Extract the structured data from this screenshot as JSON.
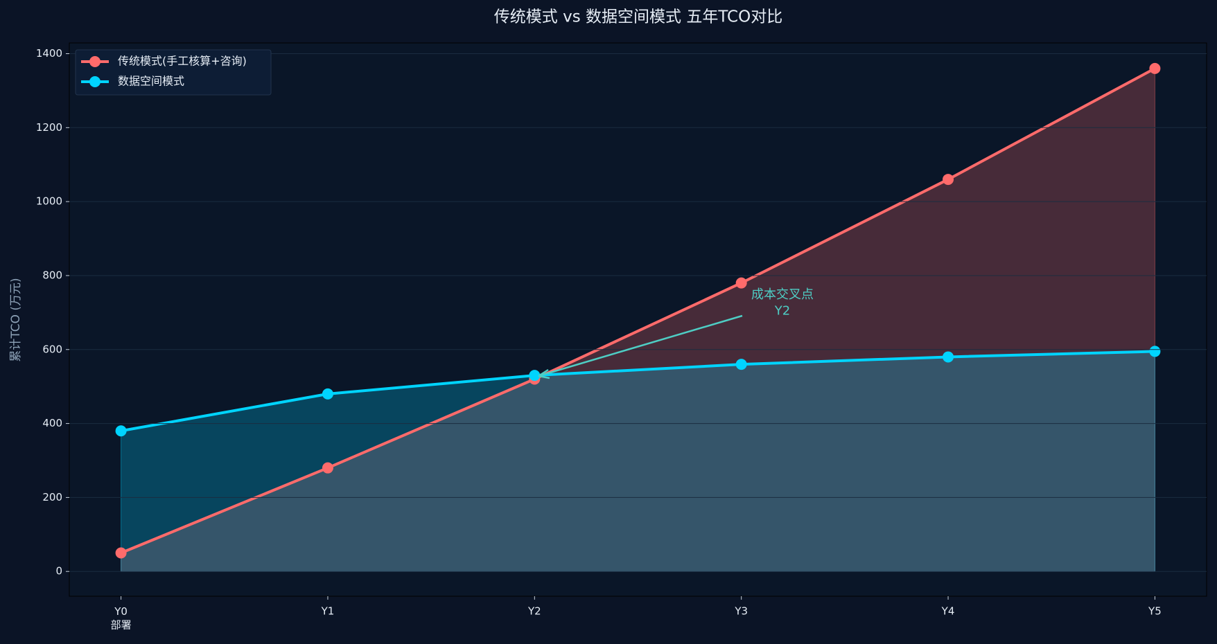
{
  "chart_data": {
    "type": "line",
    "title": "传统模式 vs 数据空间模式 五年TCO对比",
    "y_label": "累计TCO (万元)",
    "categories": [
      "Y0\n部署",
      "Y1",
      "Y2",
      "Y3",
      "Y4",
      "Y5"
    ],
    "series": [
      {
        "name": "传统模式(手工核算+咨询)",
        "color": "#ff6b6b",
        "values": [
          50,
          280,
          520,
          780,
          1060,
          1360
        ]
      },
      {
        "name": "数据空间模式",
        "color": "#00d4ff",
        "values": [
          380,
          480,
          530,
          560,
          580,
          595
        ]
      }
    ],
    "annotation": "成本交叉点\nY2",
    "annotation_color": "#4ecdc4",
    "ylim": [
      -67,
      1429
    ],
    "yticks": [
      0,
      200,
      400,
      600,
      800,
      1000,
      1200,
      1400
    ],
    "grid": true,
    "fill_area": true,
    "legend": "upper-left"
  }
}
